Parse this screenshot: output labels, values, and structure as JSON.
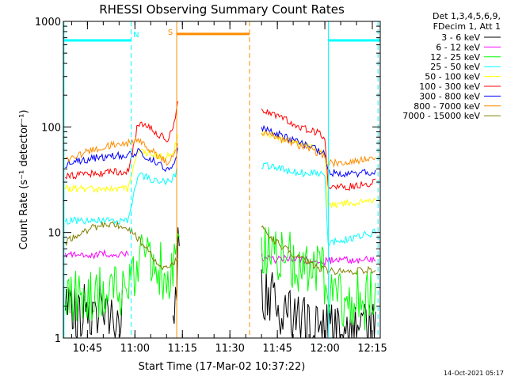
{
  "chart_data": {
    "type": "line",
    "title": "RHESSI Observing Summary Count Rates",
    "xlabel": "Start Time (17-Mar-02 10:37:22)",
    "ylabel": "Count Rate (s⁻¹ detector⁻¹)",
    "ylog": true,
    "xlim": [
      37.4,
      137.5
    ],
    "ylim": [
      1,
      1000
    ],
    "x_ticks": [
      {
        "value": 45,
        "label": "10:45"
      },
      {
        "value": 60,
        "label": "11:00"
      },
      {
        "value": 75,
        "label": "11:15"
      },
      {
        "value": 90,
        "label": "11:30"
      },
      {
        "value": 105,
        "label": "11:45"
      },
      {
        "value": 120,
        "label": "12:00"
      },
      {
        "value": 135,
        "label": "12:15"
      }
    ],
    "y_ticks": [
      {
        "value": 1,
        "label": "1"
      },
      {
        "value": 10,
        "label": "10"
      },
      {
        "value": 100,
        "label": "100"
      },
      {
        "value": 1000,
        "label": "1000"
      }
    ],
    "legend": {
      "position": "right",
      "header": [
        "Det 1,3,4,5,6,9,",
        "FDecim 1, Att 1"
      ]
    },
    "series": [
      {
        "name": "3 - 6 keV",
        "color": "#000000",
        "x": [
          38,
          41,
          44,
          47,
          50,
          53,
          56,
          72,
          74,
          100,
          103,
          106,
          109,
          112,
          115,
          118,
          121,
          124,
          127,
          130,
          133,
          136
        ],
        "y": [
          1.8,
          1.6,
          1.7,
          1.5,
          1.8,
          1.6,
          1.7,
          1.1,
          10,
          2.6,
          2.3,
          2.0,
          1.7,
          1.5,
          1.3,
          1.2,
          1.1,
          1.1,
          1.2,
          1.1,
          1.2,
          1.2
        ]
      },
      {
        "name": "6 - 12 keV",
        "color": "#ff00ff",
        "x": [
          38,
          42,
          46,
          50,
          54,
          58,
          100,
          104,
          108,
          112,
          116,
          120,
          124,
          128,
          132,
          136
        ],
        "y": [
          6.2,
          6.4,
          6.0,
          6.3,
          6.1,
          6.2,
          5.8,
          5.5,
          5.8,
          5.4,
          5.6,
          5.3,
          5.6,
          5.4,
          5.5,
          5.6
        ]
      },
      {
        "name": "12 - 25 keV",
        "color": "#00ff00",
        "x": [
          38,
          42,
          46,
          50,
          54,
          58,
          61,
          64,
          67,
          70,
          72,
          74,
          100,
          103,
          106,
          109,
          112,
          115,
          118,
          121,
          124,
          127,
          130,
          133,
          136
        ],
        "y": [
          2.6,
          2.4,
          2.7,
          2.5,
          2.6,
          2.8,
          6.0,
          5.5,
          4.6,
          4.0,
          4.8,
          12,
          7.5,
          6.8,
          6.0,
          5.5,
          5.0,
          4.8,
          4.6,
          3.2,
          2.2,
          2.2,
          2.4,
          2.2,
          2.3
        ]
      },
      {
        "name": "25 - 50 keV",
        "color": "#00ffff",
        "x": [
          38,
          42,
          46,
          50,
          54,
          58,
          61,
          64,
          67,
          70,
          72,
          73.5,
          100,
          103,
          106,
          109,
          112,
          115,
          118,
          120,
          121,
          124,
          127,
          130,
          133,
          136
        ],
        "y": [
          13,
          13,
          13,
          13,
          13,
          13,
          36,
          33,
          31,
          30,
          32,
          40,
          43,
          42,
          40,
          38,
          37,
          36,
          36,
          36,
          8,
          8.3,
          8.6,
          9.0,
          9.5,
          10
        ]
      },
      {
        "name": "50 - 100 keV",
        "color": "#ffff00",
        "x": [
          38,
          42,
          46,
          50,
          54,
          58,
          61,
          64,
          67,
          70,
          72,
          73.5,
          100,
          103,
          106,
          109,
          112,
          115,
          118,
          120,
          121,
          124,
          127,
          130,
          133,
          136
        ],
        "y": [
          26,
          26,
          26,
          26,
          26,
          26,
          60,
          57,
          54,
          52,
          56,
          80,
          88,
          84,
          78,
          73,
          69,
          65,
          62,
          60,
          18,
          18,
          19,
          19,
          20,
          21
        ]
      },
      {
        "name": "100 - 300 keV",
        "color": "#ff0000",
        "x": [
          38,
          42,
          46,
          50,
          54,
          58,
          61,
          64,
          67,
          70,
          72,
          73.5,
          100,
          103,
          106,
          109,
          112,
          115,
          118,
          120,
          121,
          124,
          127,
          130,
          133,
          136
        ],
        "y": [
          34,
          35,
          36,
          37,
          38,
          38,
          110,
          100,
          88,
          76,
          92,
          175,
          150,
          138,
          125,
          112,
          102,
          94,
          87,
          80,
          28,
          27,
          27,
          28,
          29,
          30
        ]
      },
      {
        "name": "300 - 800 keV",
        "color": "#0000ff",
        "x": [
          38,
          42,
          46,
          50,
          54,
          58,
          61,
          64,
          67,
          70,
          72,
          73.5,
          100,
          103,
          106,
          109,
          112,
          115,
          118,
          120,
          121,
          124,
          127,
          130,
          133,
          136
        ],
        "y": [
          44,
          47,
          50,
          52,
          54,
          54,
          58,
          52,
          45,
          40,
          44,
          60,
          98,
          92,
          84,
          76,
          70,
          65,
          60,
          56,
          38,
          36,
          35,
          36,
          37,
          38
        ]
      },
      {
        "name": "800 - 7000 keV",
        "color": "#ff8c00",
        "x": [
          38,
          42,
          46,
          50,
          54,
          58,
          61,
          64,
          67,
          70,
          72,
          73.5,
          100,
          103,
          106,
          109,
          112,
          115,
          118,
          120,
          121,
          124,
          127,
          130,
          133,
          136
        ],
        "y": [
          48,
          54,
          60,
          65,
          68,
          70,
          74,
          64,
          54,
          47,
          52,
          68,
          86,
          82,
          77,
          72,
          67,
          62,
          56,
          52,
          46,
          45,
          46,
          47,
          49,
          50
        ]
      },
      {
        "name": "7000 - 15000 keV",
        "color": "#808000",
        "x": [
          38,
          42,
          46,
          50,
          53,
          56,
          59,
          62,
          65,
          68,
          71,
          73.5,
          100,
          103,
          106,
          109,
          112,
          115,
          118,
          121,
          124,
          127,
          130,
          133,
          136
        ],
        "y": [
          8,
          9.5,
          11,
          11.8,
          12,
          11.5,
          10,
          8,
          6.2,
          4.8,
          4.5,
          6,
          11,
          9,
          7.5,
          6.5,
          5.8,
          5.2,
          4.6,
          4.4,
          4.3,
          4.4,
          4.3,
          4.4,
          4.4
        ]
      }
    ],
    "annotations": [
      {
        "kind": "segment",
        "color": "#00ffff",
        "x1": 37.4,
        "x2": 58.8,
        "y": 660
      },
      {
        "kind": "segment",
        "color": "#00ffff",
        "x1": 121,
        "x2": 137.5,
        "y": 660
      },
      {
        "kind": "segment",
        "color": "#ff8c00",
        "x1": 73.2,
        "x2": 96.2,
        "y": 760
      },
      {
        "kind": "vline",
        "color": "#00ffff",
        "x": 37.6,
        "dashed": false
      },
      {
        "kind": "vline",
        "color": "#00ffff",
        "x": 58.8,
        "dashed": true
      },
      {
        "kind": "vline",
        "color": "#00ffff",
        "x": 121.1,
        "dashed": false
      },
      {
        "kind": "vline",
        "color": "#00ffff",
        "x": 136.8,
        "dashed": true
      },
      {
        "kind": "vline",
        "color": "#ff8c00",
        "x": 73.2,
        "dashed": false
      },
      {
        "kind": "vline",
        "color": "#ff8c00",
        "x": 96.2,
        "dashed": true
      },
      {
        "kind": "label",
        "text": "N",
        "color": "#00ffff",
        "x": 60.4,
        "y": 760
      },
      {
        "kind": "label",
        "text": "S",
        "color": "#ff8c00",
        "x": 71.2,
        "y": 800
      }
    ],
    "grid": false
  },
  "footer_timestamp": "14-Oct-2021 05:17"
}
